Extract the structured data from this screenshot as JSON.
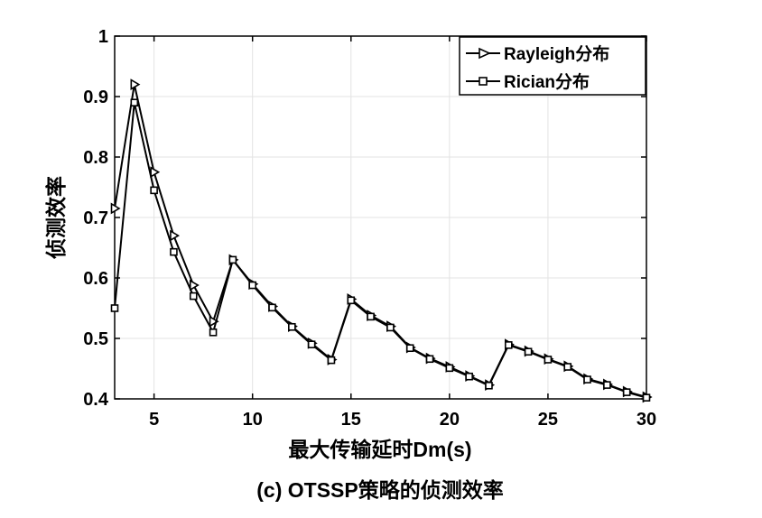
{
  "chart_data": {
    "type": "line",
    "xlabel": "最大传输延时Dm(s)",
    "ylabel": "侦测效率",
    "caption": "(c) OTSSP策略的侦测效率",
    "xlim": [
      3,
      30
    ],
    "ylim": [
      0.4,
      1
    ],
    "xticks": [
      5,
      10,
      15,
      20,
      25,
      30
    ],
    "yticks": [
      0.4,
      0.5,
      0.6,
      0.7,
      0.8,
      0.9,
      1
    ],
    "ytick_labels": [
      "0.4",
      "0.5",
      "0.6",
      "0.7",
      "0.8",
      "0.9",
      "1"
    ],
    "grid": true,
    "legend_position": "top-right",
    "x": [
      3,
      4,
      5,
      6,
      7,
      8,
      9,
      10,
      11,
      12,
      13,
      14,
      15,
      16,
      17,
      18,
      19,
      20,
      21,
      22,
      23,
      24,
      25,
      26,
      27,
      28,
      29,
      30
    ],
    "series": [
      {
        "name": "Rayleigh分布",
        "marker": "triangle-right",
        "color": "#000000",
        "values": [
          0.715,
          0.92,
          0.775,
          0.67,
          0.588,
          0.528,
          0.63,
          0.59,
          0.553,
          0.52,
          0.492,
          0.465,
          0.565,
          0.538,
          0.52,
          0.485,
          0.467,
          0.453,
          0.438,
          0.423,
          0.49,
          0.479,
          0.466,
          0.454,
          0.433,
          0.424,
          0.412,
          0.403
        ]
      },
      {
        "name": "Rician分布",
        "marker": "square",
        "color": "#000000",
        "values": [
          0.55,
          0.89,
          0.745,
          0.643,
          0.57,
          0.51,
          0.63,
          0.588,
          0.551,
          0.519,
          0.49,
          0.464,
          0.563,
          0.536,
          0.518,
          0.484,
          0.466,
          0.451,
          0.437,
          0.422,
          0.489,
          0.478,
          0.465,
          0.453,
          0.432,
          0.423,
          0.411,
          0.402
        ]
      }
    ]
  }
}
